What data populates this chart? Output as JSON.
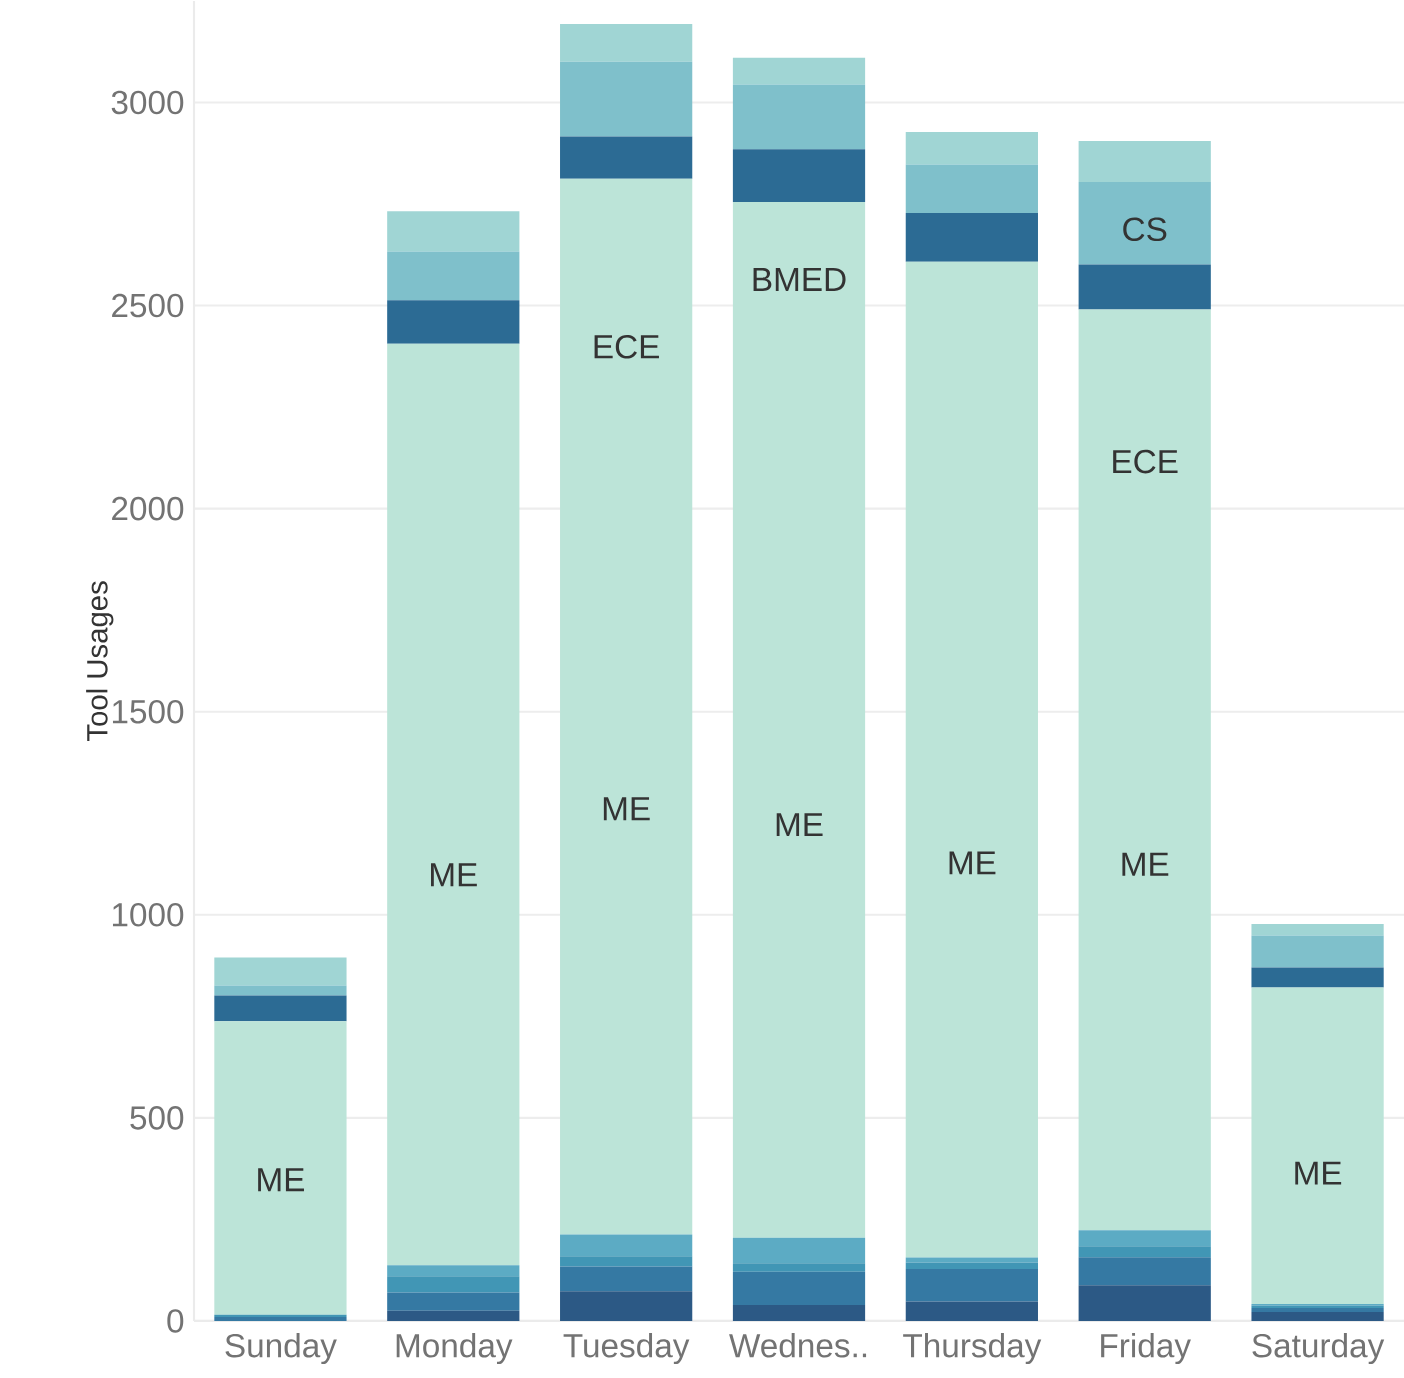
{
  "chart_data": {
    "type": "bar",
    "stacked": true,
    "ylabel": "Tool Usages",
    "categories": [
      "Sunday",
      "Monday",
      "Tuesday",
      "Wednes..",
      "Thursday",
      "Friday",
      "Saturday"
    ],
    "ylim": [
      0,
      3250
    ],
    "yticks": [
      0,
      500,
      1000,
      1500,
      2000,
      2500,
      3000
    ],
    "grid": "y",
    "series": [
      {
        "color": "#2c5985",
        "values": [
          0,
          25,
          73,
          39,
          48,
          88,
          22
        ]
      },
      {
        "color": "#3579a3",
        "values": [
          10,
          45,
          61,
          82,
          80,
          69,
          10
        ]
      },
      {
        "color": "#4196b5",
        "values": [
          5,
          40,
          25,
          21,
          16,
          27,
          6
        ]
      },
      {
        "color": "#5cabc4",
        "values": [
          0,
          27,
          54,
          63,
          12,
          39,
          4
        ]
      },
      {
        "color": "#bce4d8",
        "values": [
          723,
          2269,
          2599,
          2550,
          2452,
          2267,
          779
        ]
      },
      {
        "color": "#2c6b94",
        "values": [
          63,
          107,
          104,
          130,
          120,
          111,
          49
        ]
      },
      {
        "color": "#7fc0cb",
        "values": [
          25,
          120,
          184,
          159,
          119,
          203,
          79
        ]
      },
      {
        "color": "#a0d5d4",
        "values": [
          69,
          99,
          93,
          66,
          80,
          101,
          28
        ]
      }
    ],
    "annotations": [
      "ME",
      "ME",
      "ECE",
      "ME",
      "BMED",
      "ME",
      "ME",
      "CS",
      "ECE",
      "ME",
      "ME"
    ]
  }
}
